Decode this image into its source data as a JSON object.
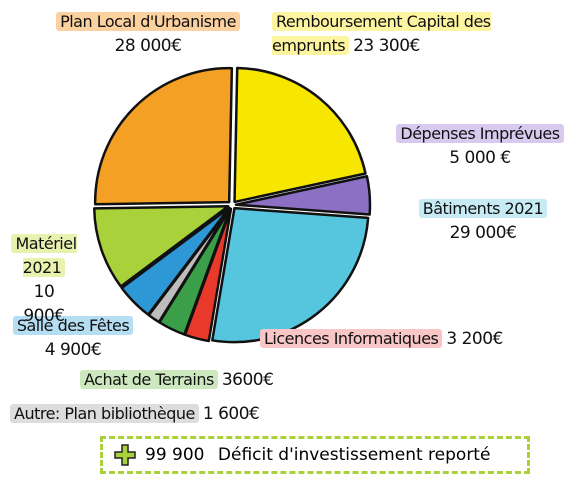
{
  "chart_data": {
    "type": "pie",
    "categories": [
      "Remboursement Capital des emprunts",
      "Dépenses Imprévues",
      "Bâtiments 2021",
      "Licences Informatiques",
      "Achat de Terrains",
      "Autre: Plan bibliothèque",
      "Salle des Fêtes",
      "Matériel 2021",
      "Plan Local d'Urbanisme"
    ],
    "values": [
      23300,
      5000,
      29000,
      3200,
      3600,
      1600,
      4900,
      10900,
      28000
    ],
    "value_labels": [
      "23 300€",
      "5 000 €",
      "29 000€",
      "3 200€",
      "3600€",
      "1 600€",
      "4 900€",
      "10 900€",
      "28 000€"
    ],
    "colors": [
      "#f6e600",
      "#8b70c4",
      "#56c6df",
      "#e8392b",
      "#3a9f48",
      "#bdbdbd",
      "#2e98d6",
      "#a9d13a",
      "#f4a024"
    ],
    "footer": {
      "amount": "99 900",
      "text": "Déficit d'investissement reporté"
    }
  }
}
